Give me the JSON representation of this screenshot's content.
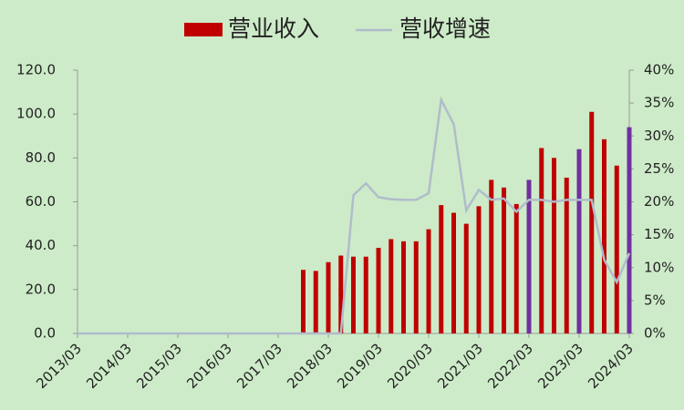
{
  "chart_data": {
    "type": "bar_line",
    "categories": [
      "2013/03",
      null,
      null,
      null,
      "2014/03",
      null,
      null,
      null,
      "2015/03",
      null,
      null,
      null,
      "2016/03",
      null,
      null,
      null,
      "2017/03",
      null,
      null,
      null,
      "2018/03",
      null,
      null,
      null,
      "2019/03",
      null,
      null,
      null,
      "2020/03",
      null,
      null,
      null,
      "2021/03",
      null,
      null,
      null,
      "2022/03",
      null,
      null,
      null,
      "2023/03",
      null,
      null,
      null,
      "2024/03"
    ],
    "series": [
      {
        "name": "营业收入",
        "type": "bar",
        "axis": "y",
        "color": "#c00000",
        "colors": [
          "#c00000",
          "#c00000",
          "#c00000",
          "#c00000",
          "#c00000",
          "#c00000",
          "#c00000",
          "#c00000",
          "#c00000",
          "#c00000",
          "#c00000",
          "#c00000",
          "#c00000",
          "#c00000",
          "#c00000",
          "#c00000",
          "#c00000",
          "#c00000",
          "#c00000",
          "#c00000",
          "#c00000",
          "#c00000",
          "#c00000",
          "#c00000",
          "#c00000",
          "#c00000",
          "#c00000",
          "#c00000",
          "#c00000",
          "#c00000",
          "#c00000",
          "#c00000",
          "#c00000",
          "#c00000",
          "#c00000",
          "#c00000",
          "#7030a0",
          "#c00000",
          "#c00000",
          "#c00000",
          "#7030a0",
          "#c00000",
          "#c00000",
          "#c00000",
          "#7030a0"
        ],
        "values": [
          0,
          0,
          0,
          0,
          0,
          0,
          0,
          0,
          0,
          0,
          0,
          0,
          0,
          0,
          0,
          0,
          0,
          0,
          29,
          28.5,
          32.5,
          35.5,
          35,
          35,
          39,
          43,
          42,
          42,
          47.5,
          58.5,
          55,
          50,
          58,
          70,
          66.5,
          59,
          70,
          84.5,
          80,
          71,
          84,
          101,
          88.5,
          76.5,
          94
        ]
      },
      {
        "name": "营收增速",
        "type": "line",
        "axis": "y2",
        "color": "#b0bccb",
        "values": [
          0,
          0,
          0,
          0,
          0,
          0,
          0,
          0,
          0,
          0,
          0,
          0,
          0,
          0,
          0,
          0,
          0,
          0,
          0,
          0,
          0,
          0,
          21,
          22.8,
          20.7,
          20.4,
          20.3,
          20.3,
          21.3,
          35.5,
          31.8,
          18.7,
          21.8,
          20.3,
          20.5,
          18.5,
          20.3,
          20.3,
          20,
          20.3,
          20.3,
          20.3,
          11.2,
          7.8,
          12.2
        ]
      }
    ],
    "ylim": [
      0,
      120
    ],
    "yticks": [
      {
        "value": 0,
        "label": "0.0"
      },
      {
        "value": 20,
        "label": "20.0"
      },
      {
        "value": 40,
        "label": "40.0"
      },
      {
        "value": 60,
        "label": "60.0"
      },
      {
        "value": 80,
        "label": "80.0"
      },
      {
        "value": 100,
        "label": "100.0"
      },
      {
        "value": 120,
        "label": "120.0"
      }
    ],
    "y2lim": [
      0,
      40
    ],
    "y2ticks": [
      {
        "value": 0,
        "label": "0%"
      },
      {
        "value": 5,
        "label": "5%"
      },
      {
        "value": 10,
        "label": "10%"
      },
      {
        "value": 15,
        "label": "15%"
      },
      {
        "value": 20,
        "label": "20%"
      },
      {
        "value": 25,
        "label": "25%"
      },
      {
        "value": 30,
        "label": "30%"
      },
      {
        "value": 35,
        "label": "35%"
      },
      {
        "value": 40,
        "label": "40%"
      }
    ],
    "legend": "top",
    "grid": false
  }
}
